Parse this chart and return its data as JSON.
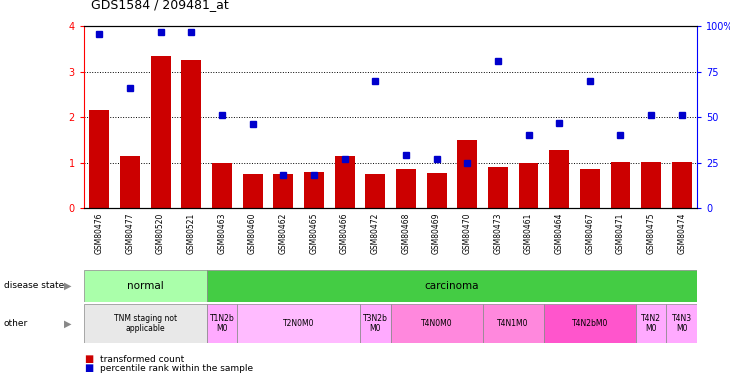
{
  "title": "GDS1584 / 209481_at",
  "samples": [
    "GSM80476",
    "GSM80477",
    "GSM80520",
    "GSM80521",
    "GSM80463",
    "GSM80460",
    "GSM80462",
    "GSM80465",
    "GSM80466",
    "GSM80472",
    "GSM80468",
    "GSM80469",
    "GSM80470",
    "GSM80473",
    "GSM80461",
    "GSM80464",
    "GSM80467",
    "GSM80471",
    "GSM80475",
    "GSM80474"
  ],
  "bar_values": [
    2.15,
    1.15,
    3.35,
    3.25,
    1.0,
    0.75,
    0.75,
    0.8,
    1.15,
    0.75,
    0.85,
    0.77,
    1.5,
    0.9,
    1.0,
    1.27,
    0.85,
    1.02,
    1.02,
    1.02
  ],
  "dot_values": [
    96.0,
    66.0,
    97.0,
    97.0,
    51.0,
    46.0,
    18.0,
    18.0,
    27.0,
    70.0,
    29.0,
    27.0,
    25.0,
    81.0,
    40.0,
    47.0,
    70.0,
    40.0,
    51.0,
    51.0
  ],
  "bar_color": "#cc0000",
  "dot_color": "#0000cc",
  "ylim_left": [
    0,
    4
  ],
  "ylim_right": [
    0,
    100
  ],
  "yticks_left": [
    0,
    1,
    2,
    3,
    4
  ],
  "yticks_right": [
    0,
    25,
    50,
    75,
    100
  ],
  "ytick_labels_left": [
    "0",
    "1",
    "2",
    "3",
    "4"
  ],
  "ytick_labels_right": [
    "0",
    "25",
    "50",
    "75",
    "100%"
  ],
  "disease_groups": [
    {
      "label": "normal",
      "start": 0,
      "end": 4,
      "color": "#aaffaa"
    },
    {
      "label": "carcinoma",
      "start": 4,
      "end": 20,
      "color": "#33cc33"
    }
  ],
  "tnm_groups": [
    {
      "label": "TNM staging not\napplicable",
      "start": 0,
      "end": 4,
      "color": "#eeeeee"
    },
    {
      "label": "T1N2b\nM0",
      "start": 4,
      "end": 5,
      "color": "#ffaaff"
    },
    {
      "label": "T2N0M0",
      "start": 5,
      "end": 9,
      "color": "#ffbbff"
    },
    {
      "label": "T3N2b\nM0",
      "start": 9,
      "end": 10,
      "color": "#ffaaff"
    },
    {
      "label": "T4N0M0",
      "start": 10,
      "end": 13,
      "color": "#ff88ee"
    },
    {
      "label": "T4N1M0",
      "start": 13,
      "end": 15,
      "color": "#ff88ee"
    },
    {
      "label": "T4N2bM0",
      "start": 15,
      "end": 18,
      "color": "#ff55ee"
    },
    {
      "label": "T4N2\nM0",
      "start": 18,
      "end": 19,
      "color": "#ffaaff"
    },
    {
      "label": "T4N3\nM0",
      "start": 19,
      "end": 20,
      "color": "#ffaaff"
    }
  ]
}
